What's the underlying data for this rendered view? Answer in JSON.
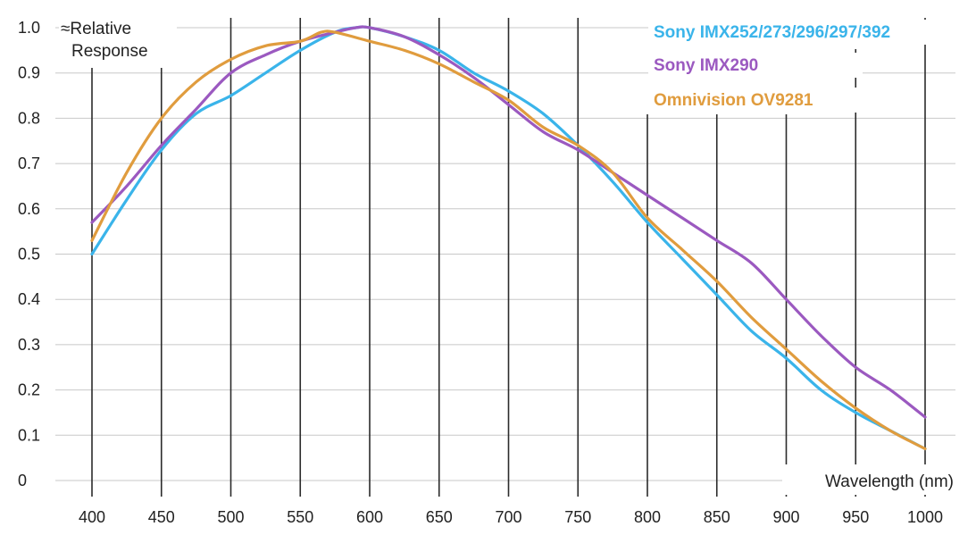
{
  "chart_data": {
    "type": "line",
    "title": "",
    "xlabel": "Wavelength (nm)",
    "ylabel": "≈Relative Response",
    "xlim": [
      400,
      1000
    ],
    "ylim": [
      0,
      1.0
    ],
    "x_ticks": [
      400,
      450,
      500,
      550,
      600,
      650,
      700,
      750,
      800,
      850,
      900,
      950,
      1000
    ],
    "y_ticks": [
      "0",
      "0.1",
      "0.2",
      "0.3",
      "0.4",
      "0.5",
      "0.6",
      "0.7",
      "0.8",
      "0.9",
      "1.0"
    ],
    "grid": true,
    "legend_position": "top-right",
    "series": [
      {
        "name": "Sony IMX252/273/296/297/392",
        "color": "#3ab4ea",
        "x": [
          400,
          425,
          450,
          475,
          500,
          525,
          550,
          575,
          590,
          600,
          625,
          650,
          675,
          700,
          725,
          750,
          775,
          800,
          825,
          850,
          875,
          900,
          925,
          950,
          975,
          1000
        ],
        "y": [
          0.5,
          0.62,
          0.73,
          0.81,
          0.85,
          0.9,
          0.95,
          0.99,
          1.0,
          1.0,
          0.98,
          0.95,
          0.9,
          0.86,
          0.81,
          0.74,
          0.66,
          0.57,
          0.49,
          0.41,
          0.33,
          0.27,
          0.2,
          0.15,
          0.11,
          0.07
        ]
      },
      {
        "name": "Sony IMX290",
        "color": "#9b59c0",
        "x": [
          400,
          425,
          450,
          475,
          500,
          525,
          550,
          575,
          590,
          600,
          625,
          650,
          675,
          700,
          725,
          750,
          775,
          800,
          825,
          850,
          875,
          900,
          925,
          950,
          975,
          1000
        ],
        "y": [
          0.57,
          0.65,
          0.74,
          0.82,
          0.9,
          0.94,
          0.97,
          0.99,
          1.0,
          1.0,
          0.98,
          0.94,
          0.89,
          0.83,
          0.77,
          0.73,
          0.68,
          0.63,
          0.58,
          0.53,
          0.48,
          0.4,
          0.32,
          0.25,
          0.2,
          0.14
        ]
      },
      {
        "name": "Omnivision OV9281",
        "color": "#e09c3e",
        "x": [
          400,
          425,
          450,
          475,
          500,
          525,
          550,
          565,
          575,
          600,
          625,
          650,
          675,
          700,
          725,
          750,
          775,
          800,
          825,
          850,
          875,
          900,
          925,
          950,
          975,
          1000
        ],
        "y": [
          0.53,
          0.68,
          0.8,
          0.88,
          0.93,
          0.96,
          0.97,
          0.99,
          0.99,
          0.97,
          0.95,
          0.92,
          0.88,
          0.84,
          0.78,
          0.74,
          0.68,
          0.58,
          0.51,
          0.44,
          0.36,
          0.29,
          0.22,
          0.16,
          0.11,
          0.07
        ]
      }
    ]
  }
}
